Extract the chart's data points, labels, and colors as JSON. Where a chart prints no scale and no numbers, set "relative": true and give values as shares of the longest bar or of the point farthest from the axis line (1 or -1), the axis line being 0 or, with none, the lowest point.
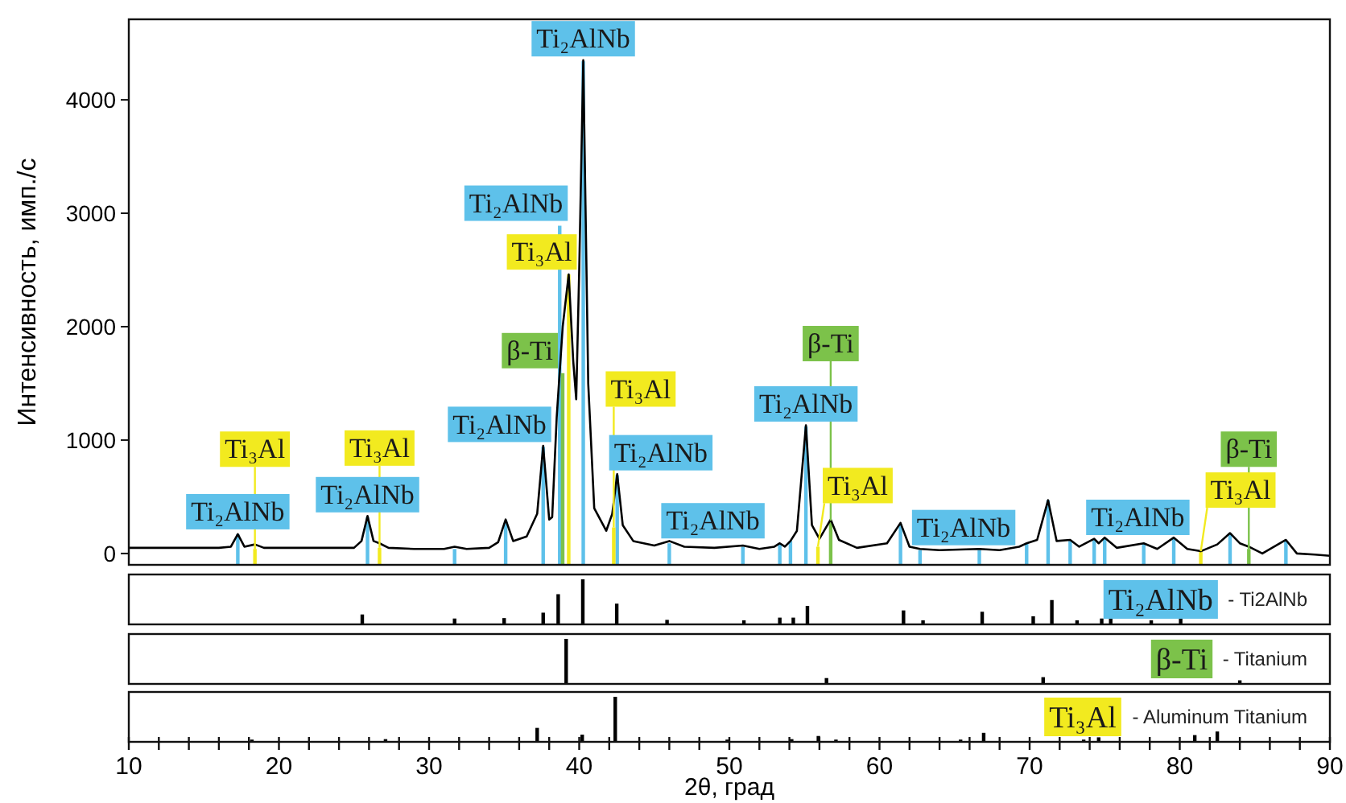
{
  "chart_data": [
    {
      "type": "line",
      "ylabel": "Интенсивность, имп./с",
      "xlim": [
        10,
        90
      ],
      "ylim": [
        -100,
        4710
      ],
      "yticks": [
        0,
        1000,
        2000,
        3000,
        4000
      ],
      "tick_labels": "y",
      "series": [
        {
          "type": "bar",
          "color": "#5ec1ea",
          "x": [
            17.26,
            25.9,
            31.7,
            35.1,
            37.6,
            38.7,
            40.27,
            42.53,
            46.0,
            50.9,
            53.36,
            54.07,
            55.1,
            61.4,
            62.7,
            66.65,
            69.8,
            71.23,
            72.7,
            74.3,
            75.0,
            77.6,
            79.6,
            83.35,
            87.07
          ],
          "base": [
            -100,
            -100,
            -100,
            -100,
            -100,
            -100,
            -100,
            -100,
            -100,
            -100,
            -100,
            -100,
            -100,
            -100,
            -100,
            -100,
            -100,
            -100,
            -100,
            -100,
            -100,
            -100,
            -100,
            -100,
            -100
          ],
          "values": [
            270,
            420,
            140,
            390,
            1040,
            2990,
            4440,
            790,
            190,
            160,
            190,
            210,
            1220,
            360,
            130,
            130,
            190,
            570,
            210,
            220,
            230,
            190,
            240,
            280,
            210
          ]
        },
        {
          "type": "bar",
          "color": "#7cc24a",
          "x": [
            38.9,
            56.75,
            84.6
          ],
          "base": [
            -100,
            -100,
            -100
          ],
          "values": [
            1690,
            390,
            140
          ]
        },
        {
          "type": "bar",
          "color": "#f2ea1f",
          "x": [
            18.4,
            26.7,
            39.3,
            42.3,
            55.9,
            81.4
          ],
          "base": [
            -100,
            -100,
            -100,
            -100,
            -100,
            -100
          ],
          "values": [
            140,
            150,
            2560,
            330,
            160,
            120
          ]
        },
        {
          "type": "line",
          "color": "#000000",
          "x": [
            10,
            12,
            14,
            16,
            16.8,
            17.26,
            17.7,
            18.4,
            19,
            21,
            23,
            25,
            25.5,
            25.9,
            26.3,
            26.7,
            27.3,
            29,
            31,
            31.7,
            32.5,
            34,
            34.6,
            35.1,
            35.6,
            36.5,
            37.2,
            37.6,
            38.0,
            38.2,
            38.5,
            38.9,
            39.3,
            39.6,
            39.8,
            40.0,
            40.27,
            40.6,
            41.0,
            41.8,
            42.2,
            42.53,
            42.9,
            43.6,
            45,
            46,
            47,
            49,
            50.9,
            52,
            53,
            53.36,
            53.7,
            54.07,
            54.5,
            55.1,
            55.5,
            56.0,
            56.75,
            57.3,
            58.5,
            60.5,
            61.4,
            62,
            62.7,
            64,
            66.65,
            68,
            69.3,
            69.8,
            70.5,
            71.23,
            71.8,
            72.7,
            73.3,
            74.3,
            74.6,
            75.0,
            75.8,
            77.6,
            78.5,
            79.6,
            80.5,
            81.4,
            82.5,
            83.35,
            84,
            84.6,
            85.5,
            87.07,
            87.8,
            89,
            90
          ],
          "values": [
            50,
            50,
            50,
            50,
            60,
            170,
            60,
            80,
            50,
            50,
            50,
            50,
            110,
            330,
            110,
            90,
            50,
            40,
            40,
            60,
            40,
            50,
            100,
            300,
            110,
            150,
            350,
            950,
            300,
            320,
            1200,
            2000,
            2460,
            1700,
            1360,
            2500,
            4350,
            1500,
            400,
            200,
            350,
            700,
            250,
            110,
            70,
            110,
            60,
            50,
            70,
            40,
            60,
            90,
            60,
            110,
            200,
            1130,
            250,
            130,
            300,
            120,
            50,
            90,
            270,
            60,
            40,
            30,
            40,
            30,
            60,
            90,
            120,
            470,
            110,
            120,
            60,
            130,
            90,
            140,
            50,
            90,
            40,
            140,
            40,
            20,
            80,
            180,
            90,
            60,
            0,
            120,
            0,
            -10,
            -20
          ]
        }
      ],
      "annotations": [
        {
          "text": "Ti₂AlNb",
          "x": 17.26,
          "y": 170
        },
        {
          "text": "Ti₂AlNb",
          "x": 25.9,
          "y": 320
        },
        {
          "text": "Ti₃Al",
          "x": 18.4,
          "y": 40
        },
        {
          "text": "Ti₃Al",
          "x": 26.7,
          "y": 50
        },
        {
          "text": "Ti₂AlNb",
          "x": 37.6,
          "y": 940
        },
        {
          "text": "Ti₂AlNb",
          "x": 38.7,
          "y": 2890
        },
        {
          "text": "β-Ti",
          "x": 38.9,
          "y": 1590
        },
        {
          "text": "Ti₃Al",
          "x": 39.3,
          "y": 2460
        },
        {
          "text": "Ti₂AlNb",
          "x": 40.27,
          "y": 4340
        },
        {
          "text": "Ti₂AlNb",
          "x": 42.53,
          "y": 690
        },
        {
          "text": "Ti₃Al",
          "x": 42.3,
          "y": 230
        },
        {
          "text": "Ti₂AlNb",
          "x": 55.1,
          "y": 1120
        },
        {
          "text": "Ti₂AlNb",
          "x": 46.0,
          "y": 90
        },
        {
          "text": "Ti₃Al",
          "x": 55.9,
          "y": 60
        },
        {
          "text": "β-Ti",
          "x": 56.75,
          "y": 290
        },
        {
          "text": "Ti₂AlNb",
          "x": 62.7,
          "y": 30
        },
        {
          "text": "Ti₂AlNb",
          "x": 74.3,
          "y": 120
        },
        {
          "text": "Ti₃Al",
          "x": 81.4,
          "y": 20
        },
        {
          "text": "β-Ti",
          "x": 84.6,
          "y": 40
        }
      ]
    },
    {
      "type": "bar",
      "relative": true,
      "xlim": [
        10,
        90
      ],
      "tick_labels": false,
      "color": "#000000",
      "annotations": [
        "Ti₂AlNb",
        "- Ti2AlNb"
      ],
      "x": [
        25.55,
        31.7,
        35.0,
        37.6,
        38.6,
        40.24,
        42.5,
        45.85,
        50.97,
        53.36,
        54.26,
        55.2,
        61.6,
        62.9,
        66.84,
        70.24,
        71.48,
        73.16,
        74.8,
        75.4,
        78.1,
        80.06
      ],
      "values": [
        0.22,
        0.13,
        0.14,
        0.26,
        0.67,
        1,
        0.46,
        0.1,
        0.09,
        0.15,
        0.15,
        0.41,
        0.31,
        0.09,
        0.28,
        0.18,
        0.54,
        0.09,
        0.13,
        0.14,
        0.09,
        0.19
      ]
    },
    {
      "type": "bar",
      "relative": true,
      "xlim": [
        10,
        90
      ],
      "tick_labels": false,
      "color": "#000000",
      "annotations": [
        "β-Ti",
        "- Titanium"
      ],
      "x": [
        39.13,
        56.47,
        70.9,
        84.0
      ],
      "values": [
        1,
        0.13,
        0.15,
        0.08
      ]
    },
    {
      "type": "bar",
      "relative": true,
      "xlim": [
        10,
        90
      ],
      "tick_labels": "x",
      "color": "#000000",
      "xlabel": "2θ, град",
      "annotations": [
        "Ti₃Al",
        "- Aluminum Titanium"
      ],
      "xticks": [
        10,
        {
          "value": 12,
          "label": null
        },
        {
          "value": 14,
          "label": null
        },
        {
          "value": 16,
          "label": null
        },
        {
          "value": 18,
          "label": null
        },
        20,
        {
          "value": 22,
          "label": null
        },
        {
          "value": 24,
          "label": null
        },
        {
          "value": 26,
          "label": null
        },
        {
          "value": 28,
          "label": null
        },
        30,
        {
          "value": 32,
          "label": null
        },
        {
          "value": 34,
          "label": null
        },
        {
          "value": 36,
          "label": null
        },
        {
          "value": 38,
          "label": null
        },
        40,
        {
          "value": 42,
          "label": null
        },
        {
          "value": 44,
          "label": null
        },
        {
          "value": 46,
          "label": null
        },
        {
          "value": 48,
          "label": null
        },
        50,
        {
          "value": 52,
          "label": null
        },
        {
          "value": 54,
          "label": null
        },
        {
          "value": 56,
          "label": null
        },
        {
          "value": 58,
          "label": null
        },
        60,
        {
          "value": 62,
          "label": null
        },
        {
          "value": 64,
          "label": null
        },
        {
          "value": 66,
          "label": null
        },
        {
          "value": 68,
          "label": null
        },
        70,
        {
          "value": 72,
          "label": null
        },
        {
          "value": 74,
          "label": null
        },
        {
          "value": 76,
          "label": null
        },
        {
          "value": 78,
          "label": null
        },
        80,
        {
          "value": 82,
          "label": null
        },
        {
          "value": 84,
          "label": null
        },
        {
          "value": 86,
          "label": null
        },
        {
          "value": 88,
          "label": null
        },
        90
      ],
      "x": [
        18.2,
        27.1,
        37.2,
        40.2,
        42.4,
        49.86,
        54.15,
        55.93,
        57.1,
        65.4,
        66.94,
        73.6,
        74.6,
        81.0,
        82.5
      ],
      "values": [
        0.05,
        0.06,
        0.31,
        0.16,
        1,
        0.05,
        0.06,
        0.13,
        0.05,
        0.05,
        0.2,
        0.05,
        0.1,
        0.15,
        0.23
      ]
    }
  ]
}
